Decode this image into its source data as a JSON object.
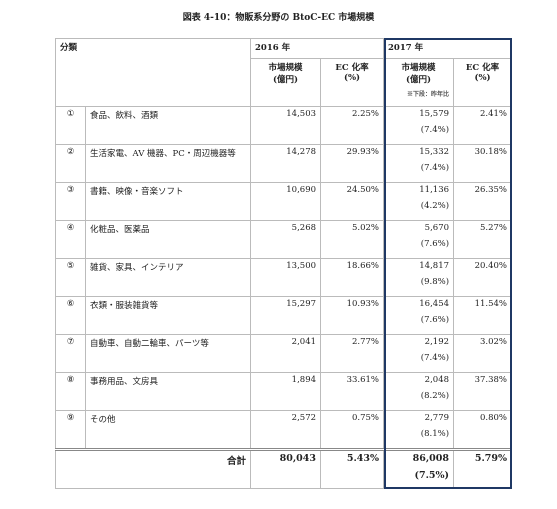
{
  "title": "図表 4-10：物販系分野の BtoC-EC 市場規模",
  "table": {
    "header": {
      "category": "分類",
      "year_2016": "2016 年",
      "year_2017": "2017 年",
      "size_label": "市場規模",
      "size_unit": "(億円)",
      "ec_label": "EC 化率",
      "ec_unit": "(%)",
      "note": "※下段：昨年比"
    },
    "rows": [
      {
        "no": "①",
        "name": "食品、飲料、酒類",
        "size_2016": "14,503",
        "ec_2016": "2.25%",
        "size_2017": "15,579",
        "yoy_2017": "(7.4%)",
        "ec_2017": "2.41%"
      },
      {
        "no": "②",
        "name": "生活家電、AV 機器、PC・周辺機器等",
        "size_2016": "14,278",
        "ec_2016": "29.93%",
        "size_2017": "15,332",
        "yoy_2017": "(7.4%)",
        "ec_2017": "30.18%"
      },
      {
        "no": "③",
        "name": "書籍、映像・音楽ソフト",
        "size_2016": "10,690",
        "ec_2016": "24.50%",
        "size_2017": "11,136",
        "yoy_2017": "(4.2%)",
        "ec_2017": "26.35%"
      },
      {
        "no": "④",
        "name": "化粧品、医薬品",
        "size_2016": "5,268",
        "ec_2016": "5.02%",
        "size_2017": "5,670",
        "yoy_2017": "(7.6%)",
        "ec_2017": "5.27%"
      },
      {
        "no": "⑤",
        "name": "雑貨、家具、インテリア",
        "size_2016": "13,500",
        "ec_2016": "18.66%",
        "size_2017": "14,817",
        "yoy_2017": "(9.8%)",
        "ec_2017": "20.40%"
      },
      {
        "no": "⑥",
        "name": "衣類・服装雑貨等",
        "size_2016": "15,297",
        "ec_2016": "10.93%",
        "size_2017": "16,454",
        "yoy_2017": "(7.6%)",
        "ec_2017": "11.54%"
      },
      {
        "no": "⑦",
        "name": "自動車、自動二輪車、パーツ等",
        "size_2016": "2,041",
        "ec_2016": "2.77%",
        "size_2017": "2,192",
        "yoy_2017": "(7.4%)",
        "ec_2017": "3.02%"
      },
      {
        "no": "⑧",
        "name": "事務用品、文房具",
        "size_2016": "1,894",
        "ec_2016": "33.61%",
        "size_2017": "2,048",
        "yoy_2017": "(8.2%)",
        "ec_2017": "37.38%"
      },
      {
        "no": "⑨",
        "name": "その他",
        "size_2016": "2,572",
        "ec_2016": "0.75%",
        "size_2017": "2,779",
        "yoy_2017": "(8.1%)",
        "ec_2017": "0.80%"
      }
    ],
    "total": {
      "label": "合計",
      "size_2016": "80,043",
      "ec_2016": "5.43%",
      "size_2017": "86,008",
      "yoy_2017": "(7.5%)",
      "ec_2017": "5.79%"
    }
  }
}
